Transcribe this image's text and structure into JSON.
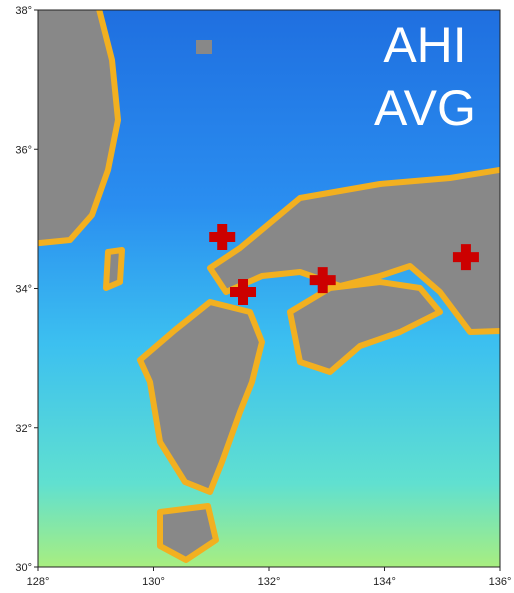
{
  "map": {
    "overlay_lines": [
      "AHI",
      "AVG"
    ],
    "lonlim": [
      128,
      136
    ],
    "latlim": [
      30,
      38
    ],
    "lonticks": [
      {
        "value": 128,
        "label": "128°"
      },
      {
        "value": 130,
        "label": "130°"
      },
      {
        "value": 132,
        "label": "132°"
      },
      {
        "value": 134,
        "label": "134°"
      },
      {
        "value": 136,
        "label": "136°"
      }
    ],
    "latticks": [
      {
        "value": 30,
        "label": "30°"
      },
      {
        "value": 32,
        "label": "32°"
      },
      {
        "value": 34,
        "label": "34°"
      },
      {
        "value": 36,
        "label": "36°"
      },
      {
        "value": 38,
        "label": "38°"
      }
    ],
    "markers": {
      "color": "#cc0000",
      "lon": [
        131.19,
        131.55,
        132.93,
        135.41
      ],
      "lat": [
        34.74,
        33.95,
        34.12,
        34.45
      ]
    }
  }
}
